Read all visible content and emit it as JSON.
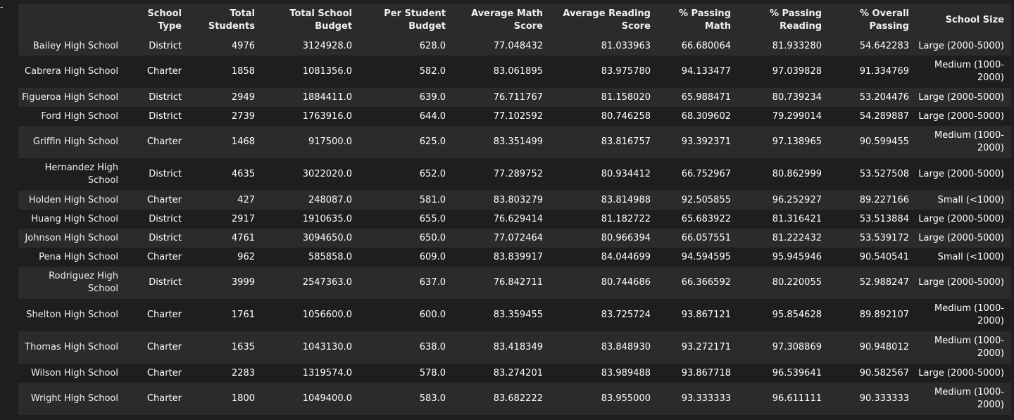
{
  "output_marker": "-",
  "table": {
    "index_header": "",
    "columns": [
      "School Type",
      "Total Students",
      "Total School Budget",
      "Per Student Budget",
      "Average Math Score",
      "Average Reading Score",
      "% Passing Math",
      "% Passing Reading",
      "% Overall Passing",
      "School Size"
    ],
    "rows": [
      {
        "name": "Bailey High School",
        "cells": [
          "District",
          "4976",
          "3124928.0",
          "628.0",
          "77.048432",
          "81.033963",
          "66.680064",
          "81.933280",
          "54.642283",
          "Large (2000-5000)"
        ]
      },
      {
        "name": "Cabrera High School",
        "cells": [
          "Charter",
          "1858",
          "1081356.0",
          "582.0",
          "83.061895",
          "83.975780",
          "94.133477",
          "97.039828",
          "91.334769",
          "Medium (1000-2000)"
        ]
      },
      {
        "name": "Figueroa High School",
        "cells": [
          "District",
          "2949",
          "1884411.0",
          "639.0",
          "76.711767",
          "81.158020",
          "65.988471",
          "80.739234",
          "53.204476",
          "Large (2000-5000)"
        ]
      },
      {
        "name": "Ford High School",
        "cells": [
          "District",
          "2739",
          "1763916.0",
          "644.0",
          "77.102592",
          "80.746258",
          "68.309602",
          "79.299014",
          "54.289887",
          "Large (2000-5000)"
        ]
      },
      {
        "name": "Griffin High School",
        "cells": [
          "Charter",
          "1468",
          "917500.0",
          "625.0",
          "83.351499",
          "83.816757",
          "93.392371",
          "97.138965",
          "90.599455",
          "Medium (1000-2000)"
        ]
      },
      {
        "name": "Hernandez High School",
        "cells": [
          "District",
          "4635",
          "3022020.0",
          "652.0",
          "77.289752",
          "80.934412",
          "66.752967",
          "80.862999",
          "53.527508",
          "Large (2000-5000)"
        ]
      },
      {
        "name": "Holden High School",
        "cells": [
          "Charter",
          "427",
          "248087.0",
          "581.0",
          "83.803279",
          "83.814988",
          "92.505855",
          "96.252927",
          "89.227166",
          "Small (<1000)"
        ]
      },
      {
        "name": "Huang High School",
        "cells": [
          "District",
          "2917",
          "1910635.0",
          "655.0",
          "76.629414",
          "81.182722",
          "65.683922",
          "81.316421",
          "53.513884",
          "Large (2000-5000)"
        ]
      },
      {
        "name": "Johnson High School",
        "cells": [
          "District",
          "4761",
          "3094650.0",
          "650.0",
          "77.072464",
          "80.966394",
          "66.057551",
          "81.222432",
          "53.539172",
          "Large (2000-5000)"
        ]
      },
      {
        "name": "Pena High School",
        "cells": [
          "Charter",
          "962",
          "585858.0",
          "609.0",
          "83.839917",
          "84.044699",
          "94.594595",
          "95.945946",
          "90.540541",
          "Small (<1000)"
        ]
      },
      {
        "name": "Rodriguez High School",
        "cells": [
          "District",
          "3999",
          "2547363.0",
          "637.0",
          "76.842711",
          "80.744686",
          "66.366592",
          "80.220055",
          "52.988247",
          "Large (2000-5000)"
        ]
      },
      {
        "name": "Shelton High School",
        "cells": [
          "Charter",
          "1761",
          "1056600.0",
          "600.0",
          "83.359455",
          "83.725724",
          "93.867121",
          "95.854628",
          "89.892107",
          "Medium (1000-2000)"
        ]
      },
      {
        "name": "Thomas High School",
        "cells": [
          "Charter",
          "1635",
          "1043130.0",
          "638.0",
          "83.418349",
          "83.848930",
          "93.272171",
          "97.308869",
          "90.948012",
          "Medium (1000-2000)"
        ]
      },
      {
        "name": "Wilson High School",
        "cells": [
          "Charter",
          "2283",
          "1319574.0",
          "578.0",
          "83.274201",
          "83.989488",
          "93.867718",
          "96.539641",
          "90.582567",
          "Large (2000-5000)"
        ]
      },
      {
        "name": "Wright High School",
        "cells": [
          "Charter",
          "1800",
          "1049400.0",
          "583.0",
          "83.682222",
          "83.955000",
          "93.333333",
          "96.611111",
          "90.333333",
          "Medium (1000-2000)"
        ]
      }
    ]
  }
}
